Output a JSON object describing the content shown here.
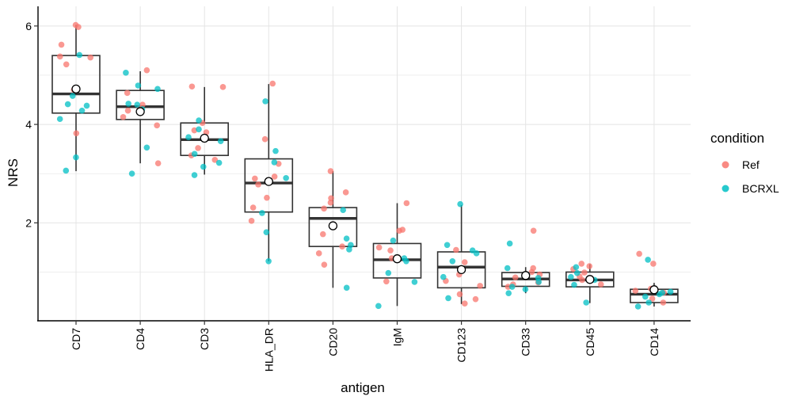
{
  "chart_data": {
    "type": "boxplot",
    "xlabel": "antigen",
    "ylabel": "NRS",
    "yticks": [
      2,
      4,
      6
    ],
    "ylim": [
      0,
      6.25
    ],
    "grid": true,
    "legend": {
      "title": "condition",
      "placement": "right",
      "entries": [
        {
          "name": "Ref",
          "color": "#f8766d"
        },
        {
          "name": "BCRXL",
          "color": "#00bfc4"
        }
      ]
    },
    "categories": [
      "CD7",
      "CD4",
      "CD3",
      "HLA_DR",
      "CD20",
      "IgM",
      "CD123",
      "CD33",
      "CD45",
      "CD14"
    ],
    "boxes": [
      {
        "min": 3.05,
        "q1": 4.23,
        "median": 4.62,
        "q3": 5.4,
        "max": 6.02,
        "mean": 4.72
      },
      {
        "min": 3.21,
        "q1": 4.1,
        "median": 4.36,
        "q3": 4.69,
        "max": 5.08,
        "mean": 4.26
      },
      {
        "min": 2.98,
        "q1": 3.37,
        "median": 3.69,
        "q3": 4.03,
        "max": 4.76,
        "mean": 3.72
      },
      {
        "min": 1.22,
        "q1": 2.22,
        "median": 2.81,
        "q3": 3.3,
        "max": 4.82,
        "mean": 2.84
      },
      {
        "min": 0.68,
        "q1": 1.52,
        "median": 2.09,
        "q3": 2.31,
        "max": 3.05,
        "mean": 1.94
      },
      {
        "min": 0.31,
        "q1": 0.88,
        "median": 1.25,
        "q3": 1.58,
        "max": 2.4,
        "mean": 1.27
      },
      {
        "min": 0.35,
        "q1": 0.68,
        "median": 1.1,
        "q3": 1.41,
        "max": 2.36,
        "mean": 1.05
      },
      {
        "min": 0.57,
        "q1": 0.71,
        "median": 0.86,
        "q3": 0.99,
        "max": 1.1,
        "mean": 0.93
      },
      {
        "min": 0.37,
        "q1": 0.7,
        "median": 0.84,
        "q3": 1.0,
        "max": 1.16,
        "mean": 0.85
      },
      {
        "min": 0.3,
        "q1": 0.38,
        "median": 0.55,
        "q3": 0.65,
        "max": 0.78,
        "mean": 0.64
      }
    ],
    "points": [
      {
        "antigen": "CD7",
        "condition": "Ref",
        "values": [
          6.02,
          5.98,
          5.62,
          5.22,
          4.7,
          3.82,
          5.38,
          5.36
        ]
      },
      {
        "antigen": "CD7",
        "condition": "BCRXL",
        "values": [
          5.41,
          4.58,
          4.41,
          4.38,
          4.28,
          4.11,
          3.33,
          3.06
        ]
      },
      {
        "antigen": "CD4",
        "condition": "Ref",
        "values": [
          5.1,
          4.64,
          4.4,
          4.33,
          4.28,
          4.15,
          3.98,
          3.21
        ]
      },
      {
        "antigen": "CD4",
        "condition": "BCRXL",
        "values": [
          5.05,
          4.79,
          4.72,
          4.42,
          4.4,
          4.31,
          3.53,
          3.0
        ]
      },
      {
        "antigen": "CD3",
        "condition": "Ref",
        "values": [
          4.77,
          4.76,
          4.03,
          3.88,
          3.84,
          3.52,
          3.37,
          3.28
        ]
      },
      {
        "antigen": "CD3",
        "condition": "BCRXL",
        "values": [
          4.08,
          3.9,
          3.74,
          3.66,
          3.4,
          3.22,
          3.14,
          2.97
        ]
      },
      {
        "antigen": "HLA_DR",
        "condition": "Ref",
        "values": [
          4.83,
          3.7,
          3.2,
          2.94,
          2.9,
          2.78,
          2.51,
          2.31,
          2.04
        ]
      },
      {
        "antigen": "HLA_DR",
        "condition": "BCRXL",
        "values": [
          4.47,
          3.46,
          3.23,
          2.91,
          2.2,
          1.81,
          1.22
        ]
      },
      {
        "antigen": "CD20",
        "condition": "Ref",
        "values": [
          3.05,
          2.62,
          2.5,
          2.41,
          2.29,
          1.77,
          1.52,
          1.38,
          1.15
        ]
      },
      {
        "antigen": "CD20",
        "condition": "BCRXL",
        "values": [
          2.26,
          1.68,
          1.55,
          1.46,
          0.68
        ]
      },
      {
        "antigen": "IgM",
        "condition": "Ref",
        "values": [
          2.4,
          1.86,
          1.84,
          1.5,
          1.44,
          1.28,
          0.81
        ]
      },
      {
        "antigen": "IgM",
        "condition": "BCRXL",
        "values": [
          1.64,
          1.28,
          1.22,
          0.98,
          0.8,
          0.31
        ]
      },
      {
        "antigen": "CD123",
        "condition": "Ref",
        "values": [
          1.45,
          1.2,
          0.95,
          0.82,
          0.72,
          0.55,
          0.45,
          0.36
        ]
      },
      {
        "antigen": "CD123",
        "condition": "BCRXL",
        "values": [
          2.38,
          1.55,
          1.44,
          1.38,
          1.22,
          0.9,
          0.47
        ]
      },
      {
        "antigen": "CD33",
        "condition": "Ref",
        "values": [
          1.84,
          1.08,
          1.0,
          0.95,
          0.89,
          0.79,
          0.75,
          0.7
        ]
      },
      {
        "antigen": "CD33",
        "condition": "BCRXL",
        "values": [
          1.58,
          1.08,
          0.95,
          0.88,
          0.8,
          0.7,
          0.65,
          0.57
        ]
      },
      {
        "antigen": "CD45",
        "condition": "Ref",
        "values": [
          1.17,
          1.12,
          1.06,
          0.99,
          0.91,
          0.84,
          0.75
        ]
      },
      {
        "antigen": "CD45",
        "condition": "BCRXL",
        "values": [
          1.1,
          0.98,
          0.9,
          0.84,
          0.74,
          0.38
        ]
      },
      {
        "antigen": "CD14",
        "condition": "Ref",
        "values": [
          1.37,
          1.17,
          0.66,
          0.62,
          0.58,
          0.46,
          0.38
        ]
      },
      {
        "antigen": "CD14",
        "condition": "BCRXL",
        "values": [
          1.25,
          0.6,
          0.58,
          0.55,
          0.5,
          0.38,
          0.3
        ]
      }
    ]
  }
}
